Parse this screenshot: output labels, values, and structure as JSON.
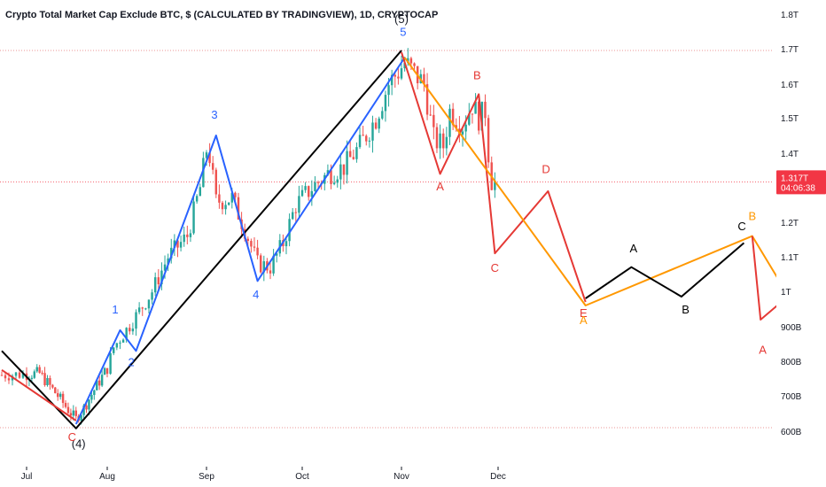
{
  "chart_data": {
    "type": "candlestick",
    "title": "Crypto Total Market Cap Exclude BTC, $ (CALCULATED BY TRADINGVIEW), 1D, CRYPTOCAP",
    "y_ticks": [
      "1.8T",
      "1.7T",
      "1.6T",
      "1.5T",
      "1.4T",
      "1.3T",
      "1.2T",
      "1.1T",
      "1T",
      "900B",
      "800B",
      "700B",
      "600B"
    ],
    "x_ticks": [
      "Jul",
      "Aug",
      "Sep",
      "Oct",
      "Nov",
      "Dec"
    ],
    "ylim_billions": [
      535,
      1860
    ],
    "price_scale_billions": [
      [
        1800,
        16
      ],
      [
        1700,
        55
      ],
      [
        1600,
        95
      ],
      [
        1500,
        133
      ],
      [
        1400,
        173
      ],
      [
        1300,
        212
      ],
      [
        1200,
        251
      ],
      [
        1100,
        290
      ],
      [
        1000,
        329
      ],
      [
        900,
        369
      ],
      [
        800,
        408
      ],
      [
        700,
        447
      ],
      [
        600,
        487
      ]
    ],
    "dates": [
      [
        -7,
        2
      ],
      [
        0,
        30
      ],
      [
        31,
        121
      ],
      [
        62,
        233
      ],
      [
        92,
        341
      ],
      [
        123,
        453
      ],
      [
        153,
        562
      ],
      [
        220,
        877
      ]
    ],
    "current_price": {
      "value": "1.317T",
      "countdown": "04:06:38",
      "value_billions": 1317
    },
    "reference_lines_billions": [
      1695,
      610
    ],
    "candles_summary": {
      "start_day": -7,
      "end_day": 159,
      "anchor_closes_billions": [
        [
          -7,
          760
        ],
        [
          5,
          765
        ],
        [
          12,
          700
        ],
        [
          16,
          660
        ],
        [
          19,
          635
        ],
        [
          22,
          665
        ],
        [
          27,
          730
        ],
        [
          31,
          780
        ],
        [
          33,
          840
        ],
        [
          40,
          930
        ],
        [
          45,
          1000
        ],
        [
          50,
          1100
        ],
        [
          56,
          1160
        ],
        [
          60,
          1300
        ],
        [
          62,
          1410
        ],
        [
          63,
          1390
        ],
        [
          65,
          1260
        ],
        [
          70,
          1270
        ],
        [
          74,
          1180
        ],
        [
          78,
          1080
        ],
        [
          82,
          1070
        ],
        [
          86,
          1140
        ],
        [
          90,
          1250
        ],
        [
          95,
          1300
        ],
        [
          100,
          1340
        ],
        [
          105,
          1360
        ],
        [
          110,
          1420
        ],
        [
          115,
          1500
        ],
        [
          119,
          1600
        ],
        [
          124,
          1660
        ],
        [
          126,
          1640
        ],
        [
          130,
          1600
        ],
        [
          133,
          1440
        ],
        [
          136,
          1420
        ],
        [
          138,
          1520
        ],
        [
          142,
          1480
        ],
        [
          145,
          1540
        ],
        [
          147,
          1500
        ],
        [
          149,
          1520
        ],
        [
          150,
          1400
        ],
        [
          151,
          1320
        ],
        [
          152,
          1317
        ]
      ]
    },
    "wave_lines": [
      {
        "color": "#000000",
        "points_billions": [
          [
            -7,
            830
          ],
          [
            19,
            608
          ],
          [
            123,
            1695
          ]
        ]
      },
      {
        "color": "#2962ff",
        "points_billions": [
          [
            19,
            620
          ],
          [
            35,
            890
          ],
          [
            40,
            830
          ],
          [
            65,
            1450
          ],
          [
            78,
            1030
          ],
          [
            124,
            1675
          ]
        ]
      },
      {
        "color": "#e53935",
        "points_billions": [
          [
            -7,
            775
          ],
          [
            19,
            630
          ]
        ]
      },
      {
        "color": "#e53935",
        "points_billions": [
          [
            123,
            1690
          ],
          [
            135,
            1340
          ],
          [
            147,
            1570
          ],
          [
            152,
            1110
          ],
          [
            165,
            1290
          ],
          [
            174,
            970
          ]
        ]
      },
      {
        "color": "#ff9800",
        "points_billions": [
          [
            124,
            1675
          ],
          [
            174,
            960
          ],
          [
            214,
            1160
          ],
          [
            220,
            1040
          ]
        ]
      },
      {
        "color": "#000000",
        "points_billions": [
          [
            174,
            980
          ],
          [
            185,
            1070
          ],
          [
            197,
            985
          ],
          [
            212,
            1140
          ]
        ]
      },
      {
        "color": "#e53935",
        "points_billions": [
          [
            214,
            1160
          ],
          [
            216,
            920
          ],
          [
            220,
            960
          ]
        ]
      }
    ],
    "wave_labels": [
      {
        "text": "(5)",
        "color": "#131722",
        "day": 123,
        "value_billions": 1775
      },
      {
        "text": "5",
        "color": "#2962ff",
        "day": 123.5,
        "value_billions": 1737
      },
      {
        "text": "3",
        "color": "#2962ff",
        "day": 64.5,
        "value_billions": 1497
      },
      {
        "text": "1",
        "color": "#2962ff",
        "day": 33.5,
        "value_billions": 938
      },
      {
        "text": "2",
        "color": "#2962ff",
        "day": 38.5,
        "value_billions": 786
      },
      {
        "text": "4",
        "color": "#2962ff",
        "day": 77.5,
        "value_billions": 980
      },
      {
        "text": "(4)",
        "color": "#131722",
        "day": 20,
        "value_billions": 554
      },
      {
        "text": "C",
        "color": "#e53935",
        "day": 17.5,
        "value_billions": 572
      },
      {
        "text": "B",
        "color": "#e53935",
        "day": 146.5,
        "value_billions": 1614
      },
      {
        "text": "A",
        "color": "#e53935",
        "day": 135,
        "value_billions": 1292
      },
      {
        "text": "C",
        "color": "#e53935",
        "day": 152,
        "value_billions": 1057
      },
      {
        "text": "D",
        "color": "#e53935",
        "day": 164.5,
        "value_billions": 1342
      },
      {
        "text": "E",
        "color": "#e53935",
        "day": 173.5,
        "value_billions": 927
      },
      {
        "text": "A",
        "color": "#ff9800",
        "day": 173.5,
        "value_billions": 907
      },
      {
        "text": "A",
        "color": "#000000",
        "day": 185.5,
        "value_billions": 1113
      },
      {
        "text": "B",
        "color": "#000000",
        "day": 198,
        "value_billions": 937
      },
      {
        "text": "C",
        "color": "#000000",
        "day": 211.5,
        "value_billions": 1177
      },
      {
        "text": "B",
        "color": "#ff9800",
        "day": 214,
        "value_billions": 1207
      },
      {
        "text": "A",
        "color": "#e53935",
        "day": 216.5,
        "value_billions": 822
      }
    ],
    "colors": {
      "up": "#26a69a",
      "down": "#ef5350",
      "grid_ref": "#e57373",
      "axis_text": "#131722",
      "price_tag": "#f23645"
    }
  }
}
